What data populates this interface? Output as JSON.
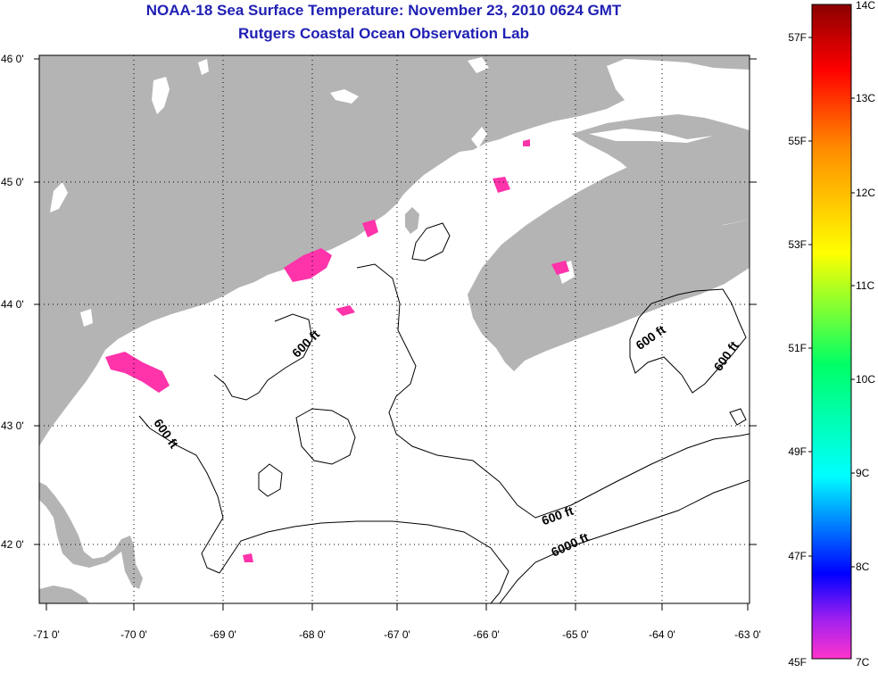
{
  "title": {
    "line1": "NOAA-18 Sea Surface Temperature:  November 23, 2010 0624 GMT",
    "line2": "Rutgers Coastal Ocean Observation Lab"
  },
  "axes": {
    "lon_labels": [
      "-71 0'",
      "-70 0'",
      "-69 0'",
      "-68 0'",
      "-67 0'",
      "-66 0'",
      "-65 0'",
      "-64 0'",
      "-63 0'"
    ],
    "lat_labels": [
      "46 0'",
      "45 0'",
      "44 0'",
      "43 0'",
      "42 0'"
    ]
  },
  "contour_labels": [
    "600 ft",
    "600 ft",
    "600 ft",
    "600 ft",
    "600 ft",
    "6000 ft"
  ],
  "colorbar": {
    "celsius_labels": [
      "14C",
      "13C",
      "12C",
      "11C",
      "10C",
      "9C",
      "8C",
      "7C"
    ],
    "fahrenheit_labels": [
      "57F",
      "55F",
      "53F",
      "51F",
      "49F",
      "47F",
      "45F"
    ],
    "colors": [
      "#8b0000",
      "#ff0000",
      "#ff8c00",
      "#ffff00",
      "#00ff66",
      "#00ffff",
      "#0000ff",
      "#a020f0",
      "#ff00cc"
    ]
  },
  "colors": {
    "land": "#b4b4b4",
    "water": "#ffffff",
    "warm_patch": "#ff33aa",
    "title": "#1f1fb4"
  }
}
